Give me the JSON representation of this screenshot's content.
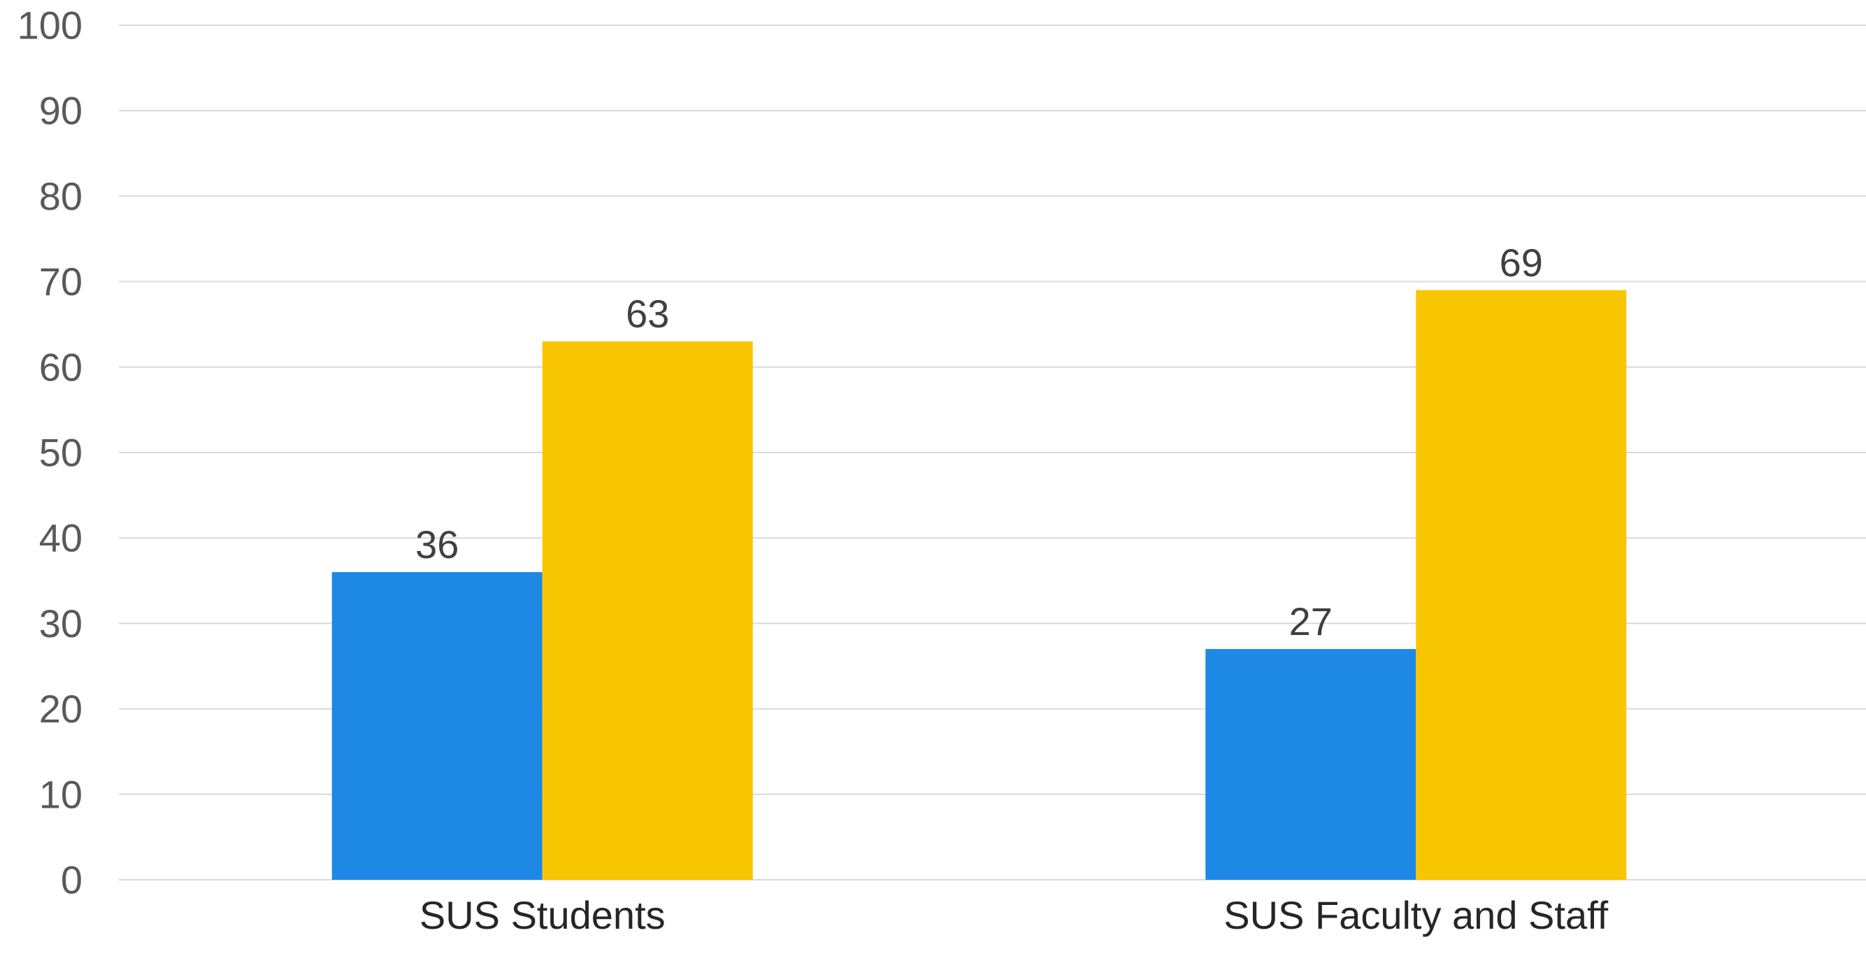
{
  "chart_data": {
    "type": "bar",
    "categories": [
      "SUS Students",
      "SUS Faculty and Staff"
    ],
    "series": [
      {
        "values": [
          36,
          27
        ],
        "color": "#1E88E5"
      },
      {
        "values": [
          63,
          69
        ],
        "color": "#F8C600"
      }
    ],
    "ylim": [
      0,
      100
    ],
    "yticks": [
      0,
      10,
      20,
      30,
      40,
      50,
      60,
      70,
      80,
      90,
      100
    ],
    "grid": true,
    "data_labels": true,
    "legend": "none"
  }
}
